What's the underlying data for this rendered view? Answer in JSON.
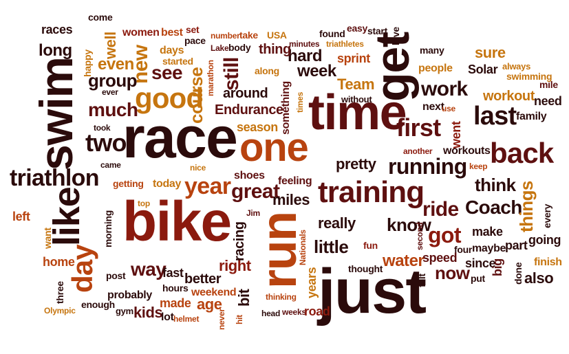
{
  "words": [
    "race",
    "bike",
    "run",
    "just",
    "time",
    "get",
    "swim",
    "one",
    "like",
    "day",
    "training",
    "triathlon",
    "back",
    "good",
    "first",
    "year",
    "running",
    "work",
    "Coach",
    "last",
    "great",
    "ride",
    "things",
    "really",
    "know",
    "little",
    "got",
    "miles",
    "way",
    "pretty",
    "week",
    "still",
    "course",
    "new",
    "hard",
    "much",
    "two",
    "see",
    "even",
    "group",
    "Team",
    "around",
    "Endurance",
    "something",
    "season",
    "think",
    "right",
    "bit",
    "racing",
    "water",
    "now",
    "since",
    "left",
    "make",
    "going",
    "part",
    "also",
    "maybe",
    "four",
    "big",
    "done",
    "finish",
    "speed",
    "felt",
    "next",
    "went",
    "family",
    "workout",
    "need",
    "mile",
    "swimming",
    "always",
    "Solar",
    "sure",
    "people",
    "many",
    "start",
    "love",
    "easy",
    "found",
    "triathletes",
    "sprint",
    "without",
    "times",
    "use",
    "thing",
    "USA",
    "minutes",
    "take",
    "body",
    "Lake",
    "number",
    "set",
    "best",
    "women",
    "happy",
    "long",
    "races",
    "come",
    "well",
    "days",
    "started",
    "marathon",
    "pace",
    "along",
    "feeling",
    "shoes",
    "Jim",
    "nice",
    "top",
    "today",
    "getting",
    "came",
    "took",
    "ever",
    "post",
    "fast",
    "hours",
    "better",
    "age",
    "weekend",
    "made",
    "kids",
    "gym",
    "lot",
    "helmet",
    "enough",
    "probably",
    "three",
    "Olympic",
    "home",
    "want",
    "morning",
    "never",
    "hit",
    "head",
    "weeks",
    "road",
    "thinking",
    "thought",
    "years",
    "Nationals",
    "second",
    "fun",
    "put",
    "keep",
    "another",
    "every",
    "workouts"
  ]
}
